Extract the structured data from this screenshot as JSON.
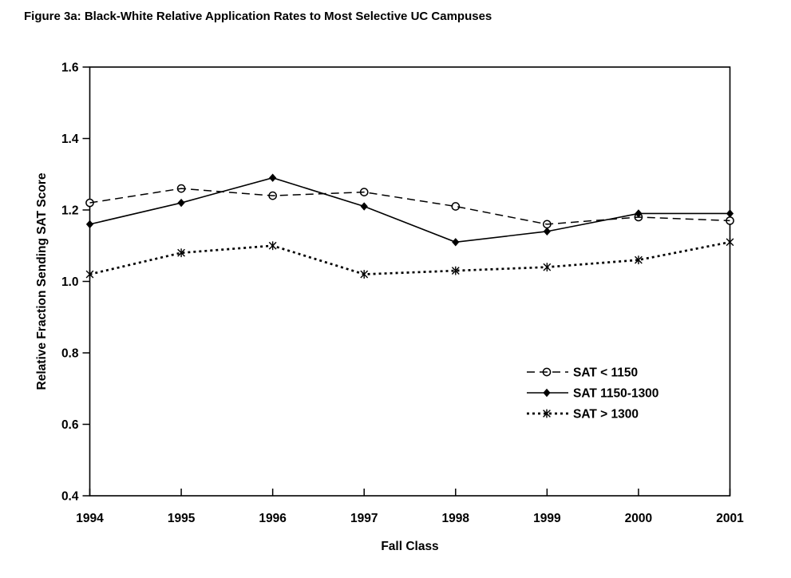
{
  "title": "Figure 3a: Black-White Relative Application Rates to Most Selective UC Campuses",
  "chart_data": {
    "type": "line",
    "title": "Figure 3a: Black-White Relative Application Rates to Most Selective UC Campuses",
    "xlabel": "Fall Class",
    "ylabel": "Relative Fraction Sending SAT Score",
    "categories": [
      "1994",
      "1995",
      "1996",
      "1997",
      "1998",
      "1999",
      "2000",
      "2001"
    ],
    "ylim": [
      0.4,
      1.6
    ],
    "y_ticks": [
      "0.4",
      "0.6",
      "0.8",
      "1.0",
      "1.2",
      "1.4",
      "1.6"
    ],
    "grid": false,
    "legend_position": "inside-right",
    "series": [
      {
        "name": "SAT < 1150",
        "marker": "circle-open",
        "line": "dashed",
        "values": [
          1.22,
          1.26,
          1.24,
          1.25,
          1.21,
          1.16,
          1.18,
          1.17
        ]
      },
      {
        "name": "SAT 1150-1300",
        "marker": "diamond-filled",
        "line": "solid",
        "values": [
          1.16,
          1.22,
          1.29,
          1.21,
          1.11,
          1.14,
          1.19,
          1.19
        ]
      },
      {
        "name": "SAT > 1300",
        "marker": "star",
        "line": "dotted-bold",
        "values": [
          1.02,
          1.08,
          1.1,
          1.02,
          1.03,
          1.04,
          1.06,
          1.11
        ]
      }
    ],
    "colors": {
      "foreground": "#000000",
      "background": "#ffffff"
    }
  }
}
